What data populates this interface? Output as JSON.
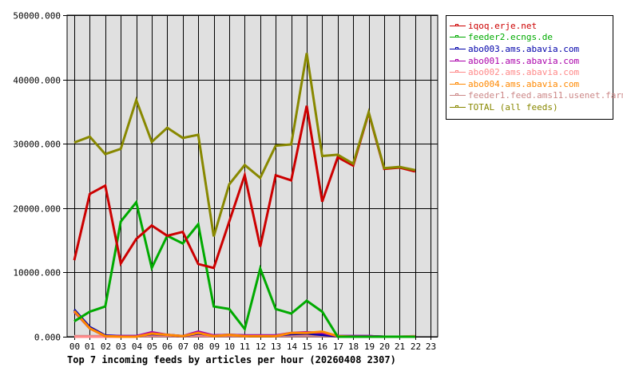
{
  "chart_data": {
    "type": "line",
    "title": "Top 7 incoming feeds by articles per hour (20260408 2307)",
    "xlabel": "",
    "ylabel": "",
    "ylim": [
      0,
      50000
    ],
    "yticks": [
      "0.000",
      "10000.000",
      "20000.000",
      "30000.000",
      "40000.000",
      "50000.000"
    ],
    "x": [
      "00",
      "01",
      "02",
      "03",
      "04",
      "05",
      "06",
      "07",
      "08",
      "09",
      "10",
      "11",
      "12",
      "13",
      "14",
      "15",
      "16",
      "17",
      "18",
      "19",
      "20",
      "21",
      "22",
      "23"
    ],
    "grid": true,
    "legend_position": "right",
    "series": [
      {
        "name": "iqoq.erje.net",
        "color": "#cc0000",
        "values": [
          11900,
          22200,
          23500,
          11400,
          15200,
          17300,
          15700,
          16300,
          11300,
          10700,
          17900,
          25100,
          14000,
          25100,
          24300,
          35900,
          21000,
          27900,
          26600,
          34800,
          26100,
          26300,
          25700,
          null
        ]
      },
      {
        "name": "feeder2.ecngs.de",
        "color": "#00aa00",
        "values": [
          2400,
          3900,
          4700,
          17900,
          20900,
          10700,
          15700,
          14500,
          17500,
          4700,
          4300,
          1200,
          10600,
          4300,
          3600,
          5600,
          3900,
          0,
          0,
          0,
          0,
          0,
          0,
          null
        ]
      },
      {
        "name": "abo003.ams.abavia.com",
        "color": "#0000aa",
        "values": [
          4200,
          1500,
          200,
          100,
          100,
          400,
          300,
          100,
          500,
          200,
          300,
          200,
          200,
          200,
          400,
          500,
          300,
          100,
          100,
          100,
          0,
          0,
          0,
          null
        ]
      },
      {
        "name": "abo001.ams.abavia.com",
        "color": "#aa00aa",
        "values": [
          3900,
          1300,
          100,
          100,
          100,
          700,
          300,
          100,
          800,
          200,
          300,
          200,
          200,
          200,
          600,
          700,
          600,
          100,
          100,
          100,
          0,
          0,
          0,
          null
        ]
      },
      {
        "name": "abo002.ams.abavia.com",
        "color": "#ff8888",
        "values": [
          0,
          0,
          0,
          0,
          100,
          200,
          200,
          100,
          200,
          100,
          200,
          100,
          200,
          100,
          400,
          400,
          400,
          100,
          100,
          100,
          0,
          0,
          100,
          null
        ]
      },
      {
        "name": "abo004.ams.abavia.com",
        "color": "#ff8800",
        "values": [
          4000,
          1300,
          100,
          0,
          0,
          500,
          300,
          100,
          600,
          100,
          300,
          100,
          100,
          100,
          600,
          600,
          800,
          100,
          0,
          0,
          0,
          0,
          0,
          null
        ]
      },
      {
        "name": "feeder1.feed.ams11.usenet.farm",
        "color": "#cc8888",
        "values": [
          100,
          100,
          100,
          100,
          100,
          100,
          100,
          100,
          100,
          100,
          100,
          100,
          200,
          100,
          100,
          100,
          100,
          100,
          100,
          100,
          0,
          0,
          100,
          null
        ]
      },
      {
        "name": "TOTAL (all feeds)",
        "color": "#888800",
        "values": [
          30200,
          31100,
          28400,
          29200,
          36800,
          30300,
          32500,
          30900,
          31400,
          15600,
          23700,
          26700,
          24700,
          29700,
          29900,
          44100,
          28100,
          28300,
          26900,
          34900,
          26200,
          26400,
          25900,
          null
        ]
      }
    ]
  },
  "legend": {
    "items": [
      {
        "label": "iqoq.erje.net",
        "color": "#cc0000"
      },
      {
        "label": "feeder2.ecngs.de",
        "color": "#00aa00"
      },
      {
        "label": "abo003.ams.abavia.com",
        "color": "#0000aa"
      },
      {
        "label": "abo001.ams.abavia.com",
        "color": "#aa00aa"
      },
      {
        "label": "abo002.ams.abavia.com",
        "color": "#ff8888"
      },
      {
        "label": "abo004.ams.abavia.com",
        "color": "#ff8800"
      },
      {
        "label": "feeder1.feed.ams11.usenet.farm",
        "color": "#cc8888"
      },
      {
        "label": "TOTAL (all feeds)",
        "color": "#888800"
      }
    ]
  },
  "colors": {
    "plot_background": "#e0e0e0",
    "grid": "#000000"
  }
}
